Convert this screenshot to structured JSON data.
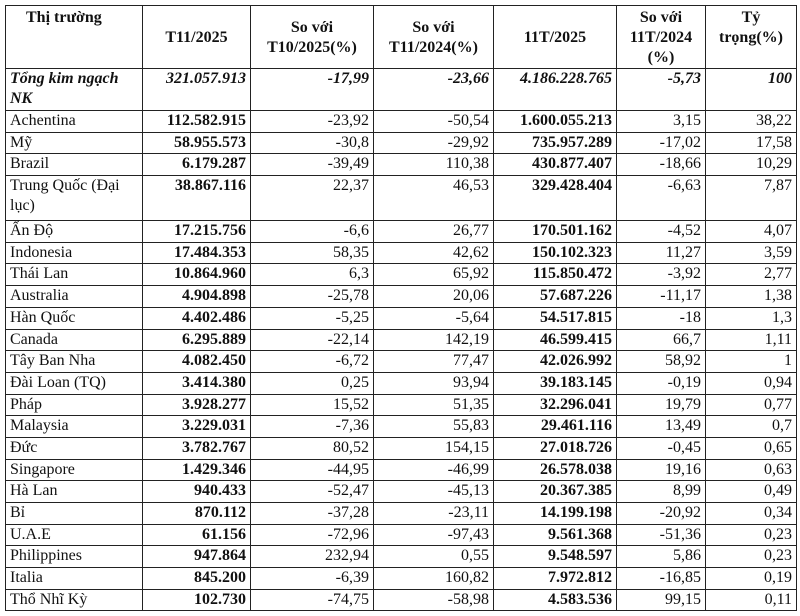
{
  "headers": [
    "Thị trường",
    "T11/2025",
    "So với T10/2025(%)",
    "So với T11/2024(%)",
    "11T/2025",
    "So với 11T/2024 (%)",
    "Tỷ trọng(%)"
  ],
  "total": [
    "Tổng kim ngạch NK",
    "321.057.913",
    "-17,99",
    "-23,66",
    "4.186.228.765",
    "-5,73",
    "100"
  ],
  "rows": [
    [
      "Achentina",
      "112.582.915",
      "-23,92",
      "-50,54",
      "1.600.055.213",
      "3,15",
      "38,22"
    ],
    [
      "Mỹ",
      "58.955.573",
      "-30,8",
      "-29,92",
      "735.957.289",
      "-17,02",
      "17,58"
    ],
    [
      "Brazil",
      "6.179.287",
      "-39,49",
      "110,38",
      "430.877.407",
      "-18,66",
      "10,29"
    ],
    [
      "Trung Quốc (Đại lục)",
      "38.867.116",
      "22,37",
      "46,53",
      "329.428.404",
      "-6,63",
      "7,87"
    ],
    [
      "Ấn Độ",
      "17.215.756",
      "-6,6",
      "26,77",
      "170.501.162",
      "-4,52",
      "4,07"
    ],
    [
      "Indonesia",
      "17.484.353",
      "58,35",
      "42,62",
      "150.102.323",
      "11,27",
      "3,59"
    ],
    [
      "Thái Lan",
      "10.864.960",
      "6,3",
      "65,92",
      "115.850.472",
      "-3,92",
      "2,77"
    ],
    [
      "Australia",
      "4.904.898",
      "-25,78",
      "20,06",
      "57.687.226",
      "-11,17",
      "1,38"
    ],
    [
      "Hàn Quốc",
      "4.402.486",
      "-5,25",
      "-5,64",
      "54.517.815",
      "-18",
      "1,3"
    ],
    [
      "Canada",
      "6.295.889",
      "-22,14",
      "142,19",
      "46.599.415",
      "66,7",
      "1,11"
    ],
    [
      "Tây Ban Nha",
      "4.082.450",
      "-6,72",
      "77,47",
      "42.026.992",
      "58,92",
      "1"
    ],
    [
      "Đài Loan (TQ)",
      "3.414.380",
      "0,25",
      "93,94",
      "39.183.145",
      "-0,19",
      "0,94"
    ],
    [
      "Pháp",
      "3.928.277",
      "15,52",
      "51,35",
      "32.296.041",
      "19,79",
      "0,77"
    ],
    [
      "Malaysia",
      "3.229.031",
      "-7,36",
      "55,83",
      "29.461.116",
      "13,49",
      "0,7"
    ],
    [
      "Đức",
      "3.782.767",
      "80,52",
      "154,15",
      "27.018.726",
      "-0,45",
      "0,65"
    ],
    [
      "Singapore",
      "1.429.346",
      "-44,95",
      "-46,99",
      "26.578.038",
      "19,16",
      "0,63"
    ],
    [
      "Hà Lan",
      "940.433",
      "-52,47",
      "-45,13",
      "20.367.385",
      "8,99",
      "0,49"
    ],
    [
      "Bỉ",
      "870.112",
      "-37,28",
      "-23,11",
      "14.199.198",
      "-20,92",
      "0,34"
    ],
    [
      "U.A.E",
      "61.156",
      "-72,96",
      "-97,43",
      "9.561.368",
      "-51,36",
      "0,23"
    ],
    [
      "Philippines",
      "947.864",
      "232,94",
      "0,55",
      "9.548.597",
      "5,86",
      "0,23"
    ],
    [
      "Italia",
      "845.200",
      "-6,39",
      "160,82",
      "7.972.812",
      "-16,85",
      "0,19"
    ],
    [
      "Thổ Nhĩ Kỳ",
      "102.730",
      "-74,75",
      "-58,98",
      "4.583.536",
      "99,15",
      "0,11"
    ]
  ]
}
